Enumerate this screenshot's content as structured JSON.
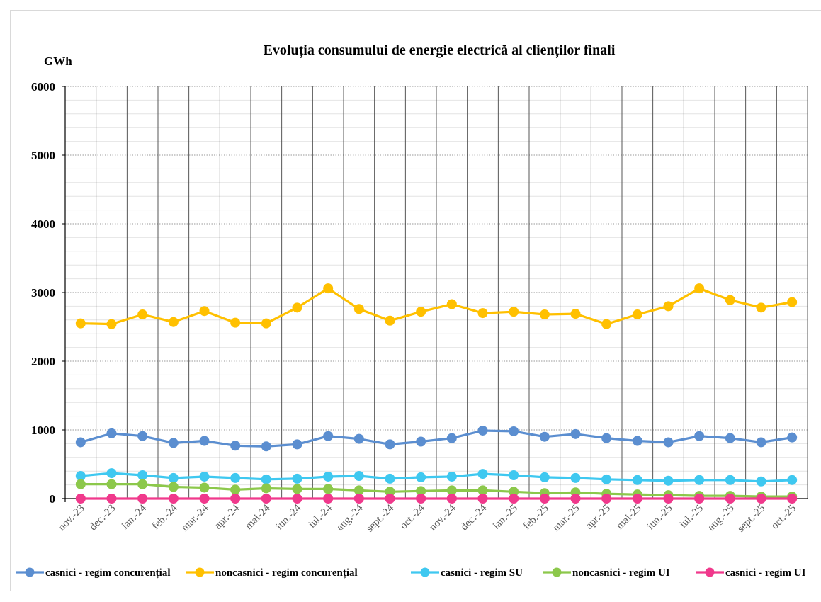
{
  "chart_data": {
    "type": "line",
    "title": "Evoluția consumului de energie electrică al clienților finali",
    "ylabel": "GWh",
    "xlabel": "",
    "ylim": [
      0,
      6000
    ],
    "yticks": [
      0,
      1000,
      2000,
      3000,
      4000,
      5000,
      6000
    ],
    "grid": true,
    "legend_position": "bottom",
    "categories": [
      "nov.-23",
      "dec.-23",
      "ian.-24",
      "feb.-24",
      "mar.-24",
      "apr.-24",
      "mai-24",
      "iun.-24",
      "iul.-24",
      "aug.-24",
      "sept.-24",
      "oct.-24",
      "nov.-24",
      "dec.-24",
      "ian.-25",
      "feb.-25",
      "mar.-25",
      "apr.-25",
      "mai-25",
      "iun.-25",
      "iul.-25",
      "aug.-25",
      "sept.-25",
      "oct.-25"
    ],
    "series": [
      {
        "name": "casnici - regim concurențial",
        "color": "#5b8ed0",
        "values": [
          820,
          950,
          910,
          810,
          840,
          770,
          760,
          790,
          910,
          870,
          790,
          830,
          880,
          990,
          980,
          900,
          940,
          880,
          840,
          820,
          910,
          880,
          820,
          890
        ]
      },
      {
        "name": "noncasnici - regim concurențial",
        "color": "#ffc000",
        "values": [
          2550,
          2540,
          2680,
          2570,
          2730,
          2560,
          2550,
          2780,
          3060,
          2760,
          2590,
          2720,
          2830,
          2700,
          2720,
          2680,
          2690,
          2540,
          2680,
          2800,
          3060,
          2890,
          2780,
          2860
        ]
      },
      {
        "name": "casnici - regim SU",
        "color": "#3fc8f0",
        "values": [
          330,
          370,
          340,
          300,
          320,
          300,
          280,
          290,
          320,
          330,
          290,
          310,
          320,
          360,
          340,
          310,
          300,
          280,
          270,
          260,
          270,
          270,
          250,
          270
        ]
      },
      {
        "name": "noncasnici - regim UI",
        "color": "#8cc84b",
        "values": [
          210,
          210,
          210,
          170,
          160,
          130,
          150,
          140,
          140,
          120,
          100,
          110,
          120,
          120,
          100,
          80,
          90,
          70,
          60,
          50,
          40,
          40,
          30,
          30
        ]
      },
      {
        "name": "casnici - regim UI",
        "color": "#f0398c",
        "values": [
          0,
          0,
          0,
          0,
          0,
          0,
          0,
          0,
          0,
          0,
          0,
          0,
          0,
          0,
          0,
          0,
          0,
          0,
          0,
          0,
          0,
          0,
          0,
          0
        ]
      }
    ]
  }
}
